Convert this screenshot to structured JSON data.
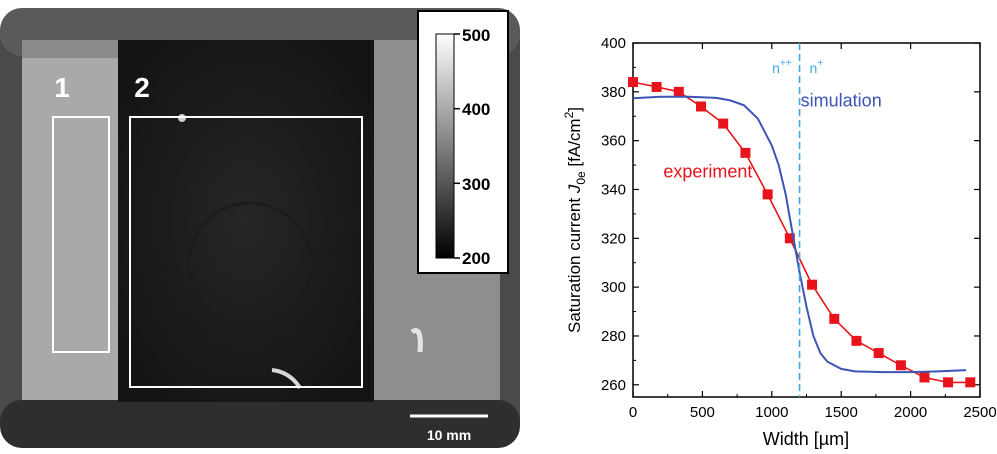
{
  "left_panel": {
    "region_labels": [
      "1",
      "2"
    ],
    "colorbar": {
      "ticks": [
        "500",
        "400",
        "300",
        "200"
      ]
    },
    "scalebar_label": "10 mm"
  },
  "chart_data": {
    "type": "line",
    "xlabel": "Width  [µm]",
    "ylabel": "Saturation current J0e  [fA/cm2]",
    "xlim": [
      0,
      2500
    ],
    "ylim": [
      255,
      400
    ],
    "xticks": [
      0,
      500,
      1000,
      1500,
      2000,
      2500
    ],
    "yticks": [
      260,
      280,
      300,
      320,
      340,
      360,
      380,
      400
    ],
    "grid": false,
    "series": [
      {
        "name": "experiment",
        "color": "#e8141b",
        "marker": "square",
        "x": [
          0,
          170,
          330,
          490,
          650,
          810,
          970,
          1130,
          1290,
          1450,
          1610,
          1770,
          1930,
          2100,
          2270,
          2430
        ],
        "y": [
          384,
          382,
          380,
          374,
          367,
          355,
          338,
          320,
          301,
          287,
          278,
          273,
          268,
          263,
          261,
          261
        ]
      },
      {
        "name": "simulation",
        "color": "#3c55b4",
        "marker": "none",
        "x": [
          0,
          200,
          400,
          600,
          700,
          800,
          900,
          1000,
          1050,
          1100,
          1150,
          1200,
          1250,
          1300,
          1350,
          1400,
          1500,
          1600,
          1800,
          2000,
          2200,
          2400
        ],
        "y": [
          377.4,
          378,
          378,
          377.5,
          376.5,
          374.5,
          369,
          358,
          350,
          338,
          322,
          306,
          292,
          280,
          273,
          269.5,
          266.5,
          265.5,
          265.2,
          265.2,
          265.5,
          266
        ]
      }
    ],
    "annotations": {
      "boundary_x": 1200,
      "boundary_color": "#3fa9e6",
      "left_region_label": "n++",
      "right_region_label": "n+"
    }
  }
}
